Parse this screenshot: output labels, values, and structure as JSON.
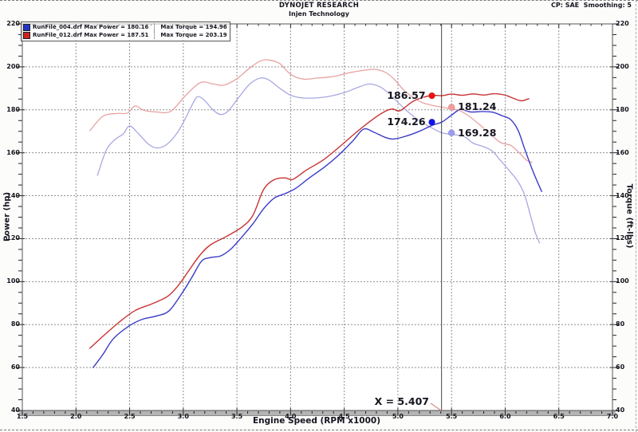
{
  "header": {
    "brand": "DYNOJET RESEARCH",
    "subtitle": "Injen Technology",
    "settings": "CP: SAE  Smoothing: 5"
  },
  "legend": {
    "rows": [
      {
        "color": "#2233cc",
        "file": "RunFile_004.drf",
        "power": "Max Power = 180.16",
        "torque": "Max Torque = 194.96"
      },
      {
        "color": "#cc2222",
        "file": "RunFile_012.drf",
        "power": "Max Power = 187.51",
        "torque": "Max Torque = 203.19"
      }
    ]
  },
  "cursor": {
    "rpm": 5.407,
    "label": "X = 5.407"
  },
  "annotations": [
    {
      "text": "186.57",
      "value": 186.57,
      "rpm": 5.317,
      "side": "left",
      "color": "#ee1111"
    },
    {
      "text": "181.24",
      "value": 181.24,
      "rpm": 5.5,
      "side": "right",
      "color": "#f49c9c"
    },
    {
      "text": "174.26",
      "value": 174.26,
      "rpm": 5.317,
      "side": "left",
      "color": "#1111ee"
    },
    {
      "text": "169.28",
      "value": 169.28,
      "rpm": 5.5,
      "side": "right",
      "color": "#9c9cf4"
    }
  ],
  "chart_data": {
    "type": "line",
    "title": "",
    "xlabel": "Engine Speed (RPM x1000)",
    "ylabel_left": "Power (hp)",
    "ylabel_right": "Torque (ft-lbs)",
    "xlim": [
      1.5,
      7.0
    ],
    "ylim": [
      40,
      220
    ],
    "x_major_step": 0.5,
    "x_minor_step": 0.1,
    "y_major_step": 20,
    "y_minor_step": 5,
    "grid": "dashed",
    "legend_position": "top-left",
    "series": [
      {
        "name": "RunFile_004 Torque (ft-lbs)",
        "color": "#a8a8e2",
        "width": 1.3,
        "points": [
          [
            2.2,
            149.5
          ],
          [
            2.28,
            161
          ],
          [
            2.36,
            166
          ],
          [
            2.44,
            168.8
          ],
          [
            2.5,
            172.5
          ],
          [
            2.58,
            169
          ],
          [
            2.68,
            163.8
          ],
          [
            2.76,
            162.2
          ],
          [
            2.85,
            164
          ],
          [
            2.94,
            169
          ],
          [
            3.02,
            176
          ],
          [
            3.1,
            184
          ],
          [
            3.14,
            186.2
          ],
          [
            3.2,
            184.3
          ],
          [
            3.28,
            179.8
          ],
          [
            3.35,
            177.8
          ],
          [
            3.42,
            179.5
          ],
          [
            3.52,
            186
          ],
          [
            3.62,
            192
          ],
          [
            3.72,
            194.8
          ],
          [
            3.8,
            193.8
          ],
          [
            3.9,
            190
          ],
          [
            4.0,
            186.8
          ],
          [
            4.1,
            185.6
          ],
          [
            4.22,
            185.5
          ],
          [
            4.35,
            186.2
          ],
          [
            4.5,
            188
          ],
          [
            4.62,
            190.3
          ],
          [
            4.73,
            192
          ],
          [
            4.83,
            190.8
          ],
          [
            4.92,
            187.5
          ],
          [
            5.0,
            183.5
          ],
          [
            5.1,
            178.8
          ],
          [
            5.2,
            175
          ],
          [
            5.3,
            172
          ],
          [
            5.41,
            169.3
          ],
          [
            5.52,
            168.5
          ],
          [
            5.62,
            167.5
          ],
          [
            5.7,
            164.5
          ],
          [
            5.8,
            162.8
          ],
          [
            5.88,
            160.8
          ],
          [
            5.95,
            156.8
          ],
          [
            6.05,
            151
          ],
          [
            6.12,
            146.5
          ],
          [
            6.18,
            140.5
          ],
          [
            6.24,
            130
          ],
          [
            6.28,
            123
          ],
          [
            6.32,
            118
          ]
        ]
      },
      {
        "name": "RunFile_012 Torque (ft-lbs)",
        "color": "#e8a2a2",
        "width": 1.3,
        "points": [
          [
            2.13,
            170.3
          ],
          [
            2.25,
            177
          ],
          [
            2.38,
            178.3
          ],
          [
            2.48,
            178.5
          ],
          [
            2.55,
            181.8
          ],
          [
            2.63,
            179.8
          ],
          [
            2.75,
            179
          ],
          [
            2.88,
            179.2
          ],
          [
            3.0,
            185.5
          ],
          [
            3.1,
            190.5
          ],
          [
            3.18,
            193
          ],
          [
            3.28,
            192
          ],
          [
            3.38,
            191.5
          ],
          [
            3.5,
            194.5
          ],
          [
            3.62,
            199.5
          ],
          [
            3.72,
            202.8
          ],
          [
            3.8,
            203.2
          ],
          [
            3.9,
            201.5
          ],
          [
            4.0,
            196.5
          ],
          [
            4.12,
            194.3
          ],
          [
            4.25,
            194.8
          ],
          [
            4.4,
            195.5
          ],
          [
            4.55,
            197.3
          ],
          [
            4.7,
            198.5
          ],
          [
            4.8,
            198.8
          ],
          [
            4.9,
            197
          ],
          [
            4.98,
            193.5
          ],
          [
            5.05,
            189.5
          ],
          [
            5.15,
            185.5
          ],
          [
            5.25,
            183
          ],
          [
            5.41,
            181.2
          ],
          [
            5.55,
            180
          ],
          [
            5.65,
            177.5
          ],
          [
            5.8,
            171.5
          ],
          [
            5.95,
            165
          ],
          [
            6.05,
            163.5
          ],
          [
            6.12,
            160.5
          ],
          [
            6.2,
            156.5
          ],
          [
            6.25,
            155.5
          ]
        ]
      },
      {
        "name": "RunFile_004 Power (hp)",
        "color": "#3a3ac8",
        "width": 1.4,
        "points": [
          [
            2.16,
            60
          ],
          [
            2.25,
            66
          ],
          [
            2.35,
            73.5
          ],
          [
            2.5,
            79.5
          ],
          [
            2.62,
            82.5
          ],
          [
            2.75,
            84
          ],
          [
            2.87,
            86.5
          ],
          [
            3.0,
            95.5
          ],
          [
            3.08,
            102
          ],
          [
            3.17,
            109.5
          ],
          [
            3.25,
            111.2
          ],
          [
            3.35,
            112
          ],
          [
            3.45,
            115.5
          ],
          [
            3.55,
            121
          ],
          [
            3.65,
            127
          ],
          [
            3.75,
            134
          ],
          [
            3.85,
            139
          ],
          [
            3.95,
            141
          ],
          [
            4.05,
            143.5
          ],
          [
            4.18,
            148.5
          ],
          [
            4.32,
            153.5
          ],
          [
            4.45,
            159
          ],
          [
            4.58,
            165.5
          ],
          [
            4.68,
            171
          ],
          [
            4.78,
            169.5
          ],
          [
            4.88,
            167.2
          ],
          [
            4.96,
            166.4
          ],
          [
            5.08,
            167.8
          ],
          [
            5.2,
            170
          ],
          [
            5.32,
            172.8
          ],
          [
            5.41,
            174.3
          ],
          [
            5.5,
            177.5
          ],
          [
            5.58,
            180.1
          ],
          [
            5.68,
            179
          ],
          [
            5.78,
            179.2
          ],
          [
            5.88,
            178.9
          ],
          [
            5.97,
            177.3
          ],
          [
            6.05,
            175.5
          ],
          [
            6.12,
            170.5
          ],
          [
            6.18,
            162
          ],
          [
            6.25,
            152.5
          ],
          [
            6.3,
            146.5
          ],
          [
            6.34,
            142
          ]
        ]
      },
      {
        "name": "RunFile_012 Power (hp)",
        "color": "#c83232",
        "width": 1.4,
        "points": [
          [
            2.13,
            69
          ],
          [
            2.25,
            74.5
          ],
          [
            2.4,
            81
          ],
          [
            2.55,
            86.5
          ],
          [
            2.7,
            89.5
          ],
          [
            2.85,
            93
          ],
          [
            2.95,
            98
          ],
          [
            3.05,
            105
          ],
          [
            3.15,
            112
          ],
          [
            3.25,
            117
          ],
          [
            3.4,
            121
          ],
          [
            3.55,
            125.5
          ],
          [
            3.65,
            131
          ],
          [
            3.75,
            143
          ],
          [
            3.85,
            147.5
          ],
          [
            3.95,
            148.3
          ],
          [
            4.02,
            147.6
          ],
          [
            4.15,
            152
          ],
          [
            4.3,
            156.5
          ],
          [
            4.45,
            162.5
          ],
          [
            4.6,
            169
          ],
          [
            4.75,
            175
          ],
          [
            4.87,
            179
          ],
          [
            4.95,
            180.4
          ],
          [
            5.02,
            179.6
          ],
          [
            5.15,
            184.2
          ],
          [
            5.3,
            186.6
          ],
          [
            5.41,
            186.6
          ],
          [
            5.5,
            187.3
          ],
          [
            5.6,
            186.8
          ],
          [
            5.7,
            187.4
          ],
          [
            5.8,
            186.9
          ],
          [
            5.9,
            187.5
          ],
          [
            6.0,
            186.8
          ],
          [
            6.08,
            185.3
          ],
          [
            6.15,
            184.2
          ],
          [
            6.22,
            185.2
          ]
        ]
      }
    ]
  }
}
